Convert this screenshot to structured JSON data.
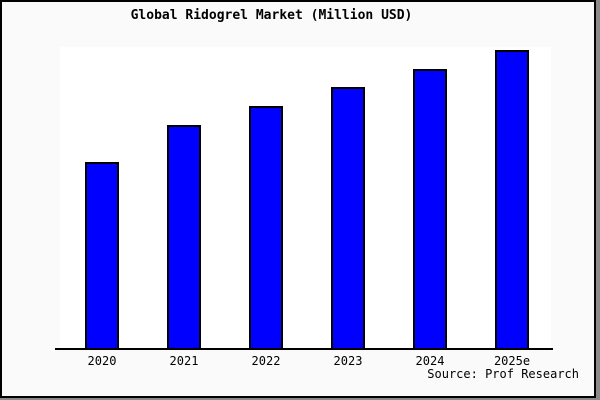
{
  "page": {
    "kind": "static-bar-chart-image",
    "colors": {
      "canvas_background": "#fafafa",
      "plot_background": "#ffffff",
      "frame_border": "#000000",
      "drop_shadow": "#8a8a8a",
      "text": "#000000"
    }
  },
  "chart_data": {
    "type": "bar",
    "title": "Global Ridogrel Market (Million USD)",
    "categories": [
      "2020",
      "2021",
      "2022",
      "2023",
      "2024",
      "2025e"
    ],
    "values": [
      62.5,
      74.9,
      81.3,
      87.6,
      93.6,
      100.0
    ],
    "values_note": "y-axis has no ticks or labels in the image; values are relative bar heights as percent of the 2025e bar",
    "xlabel": "",
    "ylabel": "",
    "ylim": [
      0,
      100
    ],
    "grid": "off",
    "legend": "none",
    "bar_color": "#0000ff",
    "bar_border_color": "#000000",
    "source": "Source: Prof Research"
  }
}
